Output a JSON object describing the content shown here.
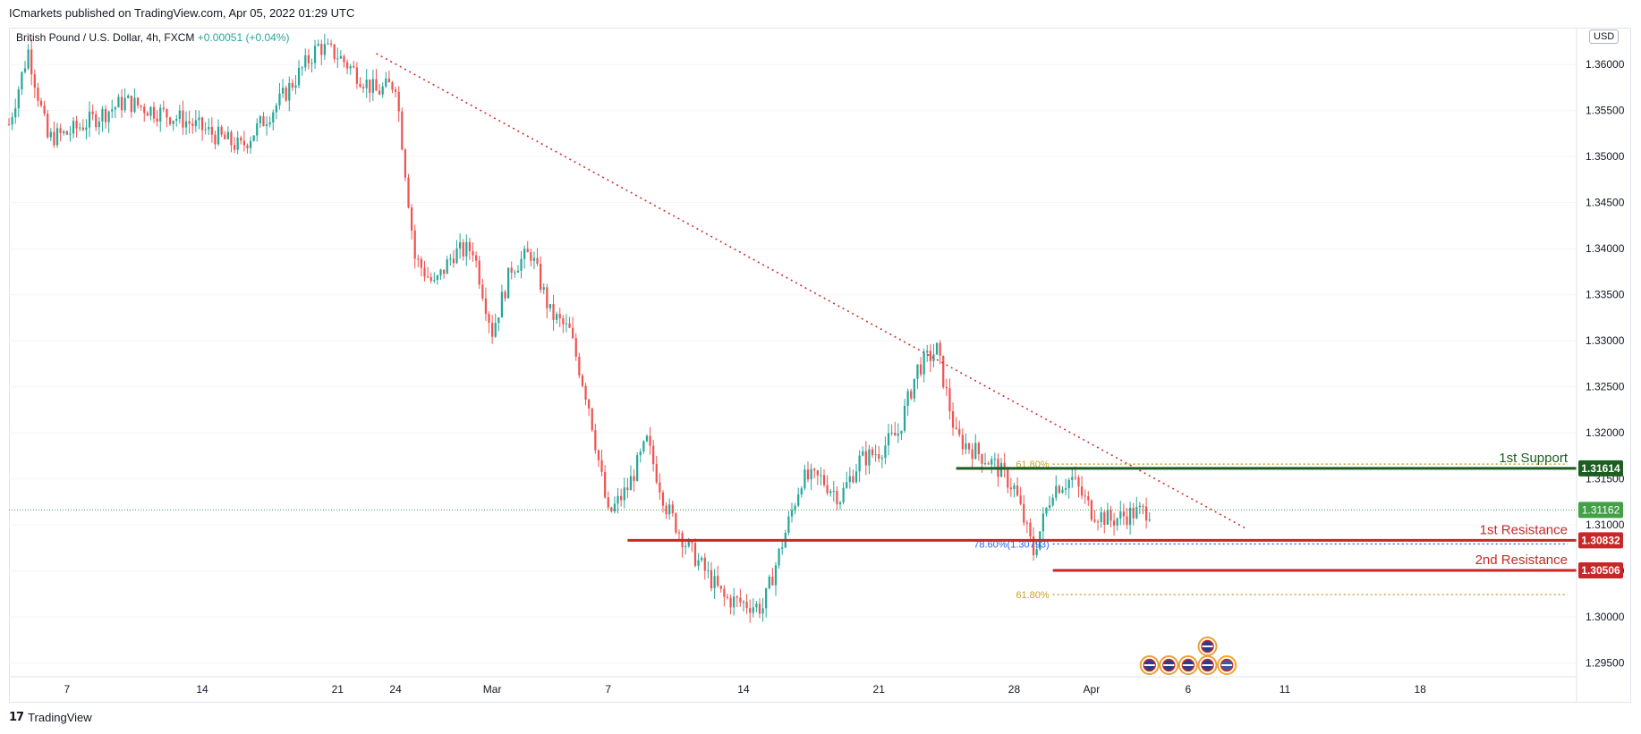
{
  "header": {
    "publisher": "ICmarkets published on TradingView.com, Apr 05, 2022 01:29 UTC",
    "symbol": "British Pound / U.S. Dollar, 4h, FXCM",
    "change": "+0.00051 (+0.04%)",
    "currency": "USD"
  },
  "footer": {
    "logo_glyph": "17",
    "brand": "TradingView"
  },
  "colors": {
    "up": "#26a69a",
    "down": "#ef5350",
    "support": "#1b5e20",
    "resistance": "#c62828",
    "trendline": "#d32f2f",
    "fib": "#c9a227",
    "fib_blue": "#2962ff",
    "price": "#43a047"
  },
  "chart_data": {
    "type": "candlestick",
    "timeframe": "4h",
    "ylim": [
      1.2935,
      1.364
    ],
    "y_ticks": [
      "1.36000",
      "1.35500",
      "1.35000",
      "1.34500",
      "1.34000",
      "1.33500",
      "1.33000",
      "1.32500",
      "1.32000",
      "1.31500",
      "1.31000",
      "1.30500",
      "1.30000",
      "1.29500"
    ],
    "x_ticks": [
      "7",
      "14",
      "21",
      "24",
      "Mar",
      "7",
      "14",
      "21",
      "28",
      "Apr",
      "6",
      "11",
      "18"
    ],
    "x_range_days": [
      "2022-02-04",
      "2022-04-26"
    ],
    "tick_dates": [
      "2022-02-07",
      "2022-02-14",
      "2022-02-21",
      "2022-02-24",
      "2022-03-01",
      "2022-03-07",
      "2022-03-14",
      "2022-03-21",
      "2022-03-28",
      "2022-04-01",
      "2022-04-06",
      "2022-04-11",
      "2022-04-18"
    ],
    "anchors": [
      [
        "2022-02-04",
        1.3535
      ],
      [
        "2022-02-05",
        1.3615
      ],
      [
        "2022-02-06",
        1.352
      ],
      [
        "2022-02-07",
        1.3525
      ],
      [
        "2022-02-10",
        1.356
      ],
      [
        "2022-02-13",
        1.354
      ],
      [
        "2022-02-16",
        1.351
      ],
      [
        "2022-02-18",
        1.356
      ],
      [
        "2022-02-20",
        1.362
      ],
      [
        "2022-02-21",
        1.361
      ],
      [
        "2022-02-22",
        1.359
      ],
      [
        "2022-02-23",
        1.357
      ],
      [
        "2022-02-24",
        1.358
      ],
      [
        "2022-02-25",
        1.339
      ],
      [
        "2022-02-26",
        1.336
      ],
      [
        "2022-02-27",
        1.3395
      ],
      [
        "2022-02-28",
        1.34
      ],
      [
        "2022-03-01",
        1.331
      ],
      [
        "2022-03-02",
        1.338
      ],
      [
        "2022-03-03",
        1.3395
      ],
      [
        "2022-03-04",
        1.333
      ],
      [
        "2022-03-05",
        1.331
      ],
      [
        "2022-03-06",
        1.323
      ],
      [
        "2022-03-07",
        1.311
      ],
      [
        "2022-03-08",
        1.314
      ],
      [
        "2022-03-09",
        1.319
      ],
      [
        "2022-03-10",
        1.312
      ],
      [
        "2022-03-11",
        1.308
      ],
      [
        "2022-03-12",
        1.305
      ],
      [
        "2022-03-13",
        1.302
      ],
      [
        "2022-03-15",
        1.301
      ],
      [
        "2022-03-16",
        1.308
      ],
      [
        "2022-03-17",
        1.315
      ],
      [
        "2022-03-18",
        1.315
      ],
      [
        "2022-03-19",
        1.313
      ],
      [
        "2022-03-20",
        1.317
      ],
      [
        "2022-03-21",
        1.318
      ],
      [
        "2022-03-22",
        1.32
      ],
      [
        "2022-03-23",
        1.327
      ],
      [
        "2022-03-24",
        1.329
      ],
      [
        "2022-03-25",
        1.3195
      ],
      [
        "2022-03-26",
        1.318
      ],
      [
        "2022-03-27",
        1.3165
      ],
      [
        "2022-03-28",
        1.314
      ],
      [
        "2022-03-29",
        1.307
      ],
      [
        "2022-03-30",
        1.314
      ],
      [
        "2022-03-31",
        1.315
      ],
      [
        "2022-04-01",
        1.3115
      ],
      [
        "2022-04-02",
        1.3105
      ],
      [
        "2022-04-03",
        1.3112
      ],
      [
        "2022-04-04",
        1.3116
      ]
    ],
    "levels": [
      {
        "name": "1st Support",
        "price": 1.31614,
        "label": "1.31614",
        "role": "support",
        "start": "2022-03-25"
      },
      {
        "name": "1st Resistance",
        "price": 1.30832,
        "label": "1.30832",
        "role": "resistance",
        "start": "2022-03-08"
      },
      {
        "name": "2nd Resistance",
        "price": 1.30506,
        "label": "1.30506",
        "role": "resistance",
        "start": "2022-03-30"
      }
    ],
    "current_price": {
      "price": 1.31162,
      "label": "1.31162"
    },
    "trendline": {
      "from": [
        "2022-02-23",
        1.3612
      ],
      "to": [
        "2022-04-09",
        1.3096
      ]
    },
    "fib_levels": [
      {
        "label": "61.80%",
        "price": 1.3166,
        "start": "2022-03-30",
        "color": "fib"
      },
      {
        "label": "78.60%(1.30793)",
        "price": 1.30793,
        "start": "2022-03-30",
        "color": "fib_blue"
      },
      {
        "label": "61.80%",
        "price": 1.30243,
        "start": "2022-03-30",
        "color": "fib"
      }
    ],
    "events": [
      {
        "date": "2022-04-07",
        "flag": "UK",
        "stack": 2
      },
      {
        "date": "2022-04-04",
        "flag": "UK",
        "stack": 1
      },
      {
        "date": "2022-04-05",
        "flag": "UK",
        "stack": 1
      },
      {
        "date": "2022-04-06",
        "flag": "UK",
        "stack": 1
      },
      {
        "date": "2022-04-07",
        "flag": "UK",
        "stack": 1
      },
      {
        "date": "2022-04-08",
        "flag": "US",
        "stack": 1
      }
    ]
  }
}
